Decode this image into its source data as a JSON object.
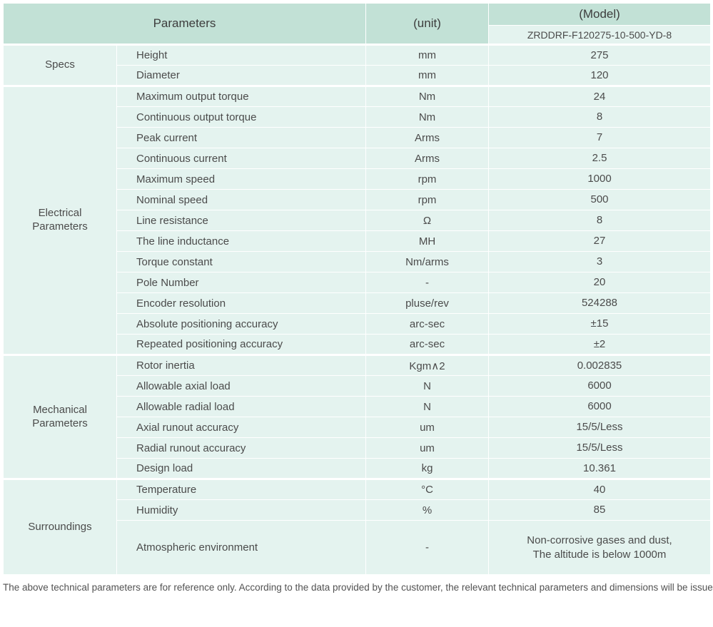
{
  "table": {
    "header": {
      "parameters_label": "Parameters",
      "unit_label": "(unit)",
      "model_label": "(Model)",
      "model_number": "ZRDDRF-F120275-10-500-YD-8"
    },
    "groups": [
      {
        "category": "Specs",
        "rows": [
          {
            "parameter": "Height",
            "unit": "mm",
            "value": "275"
          },
          {
            "parameter": "Diameter",
            "unit": "mm",
            "value": "120"
          }
        ]
      },
      {
        "category": "Electrical\nParameters",
        "rows": [
          {
            "parameter": "Maximum output torque",
            "unit": "Nm",
            "value": "24"
          },
          {
            "parameter": "Continuous output torque",
            "unit": "Nm",
            "value": "8"
          },
          {
            "parameter": "Peak current",
            "unit": "Arms",
            "value": "7"
          },
          {
            "parameter": "Continuous current",
            "unit": "Arms",
            "value": "2.5"
          },
          {
            "parameter": "Maximum speed",
            "unit": "rpm",
            "value": "1000"
          },
          {
            "parameter": "Nominal speed",
            "unit": "rpm",
            "value": "500"
          },
          {
            "parameter": "Line resistance",
            "unit": "Ω",
            "value": "8"
          },
          {
            "parameter": "The line inductance",
            "unit": "MH",
            "value": "27"
          },
          {
            "parameter": "Torque constant",
            "unit": "Nm/arms",
            "value": "3"
          },
          {
            "parameter": "Pole Number",
            "unit": "-",
            "value": "20"
          },
          {
            "parameter": "Encoder resolution",
            "unit": "pluse/rev",
            "value": "524288"
          },
          {
            "parameter": "Absolute positioning accuracy",
            "unit": "arc-sec",
            "value": "±15"
          },
          {
            "parameter": "Repeated positioning accuracy",
            "unit": "arc-sec",
            "value": "±2"
          }
        ]
      },
      {
        "category": "Mechanical\nParameters",
        "rows": [
          {
            "parameter": "Rotor inertia",
            "unit": "Kgm∧2",
            "value": "0.002835"
          },
          {
            "parameter": "Allowable axial load",
            "unit": "N",
            "value": "6000"
          },
          {
            "parameter": "Allowable radial load",
            "unit": "N",
            "value": "6000"
          },
          {
            "parameter": "Axial runout accuracy",
            "unit": "um",
            "value": "15/5/Less"
          },
          {
            "parameter": "Radial runout accuracy",
            "unit": "um",
            "value": "15/5/Less"
          },
          {
            "parameter": "Design load",
            "unit": "kg",
            "value": "10.361"
          }
        ]
      },
      {
        "category": "Surroundings",
        "rows": [
          {
            "parameter": "Temperature",
            "unit": "°C",
            "value": "40"
          },
          {
            "parameter": "Humidity",
            "unit": "%",
            "value": "85"
          },
          {
            "parameter": "Atmospheric environment",
            "unit": "-",
            "value": "Non-corrosive gases and dust,\nThe altitude is below 1000m"
          }
        ]
      }
    ]
  },
  "footer": {
    "note": "The above technical parameters are for reference only. According to the data provided by the customer, the relevant technical parameters and dimensions will be issued."
  },
  "colors": {
    "header_bg": "#c2e1d6",
    "cell_bg": "#e4f3ef",
    "divider": "#ffffff",
    "text": "#4b4b4b"
  }
}
